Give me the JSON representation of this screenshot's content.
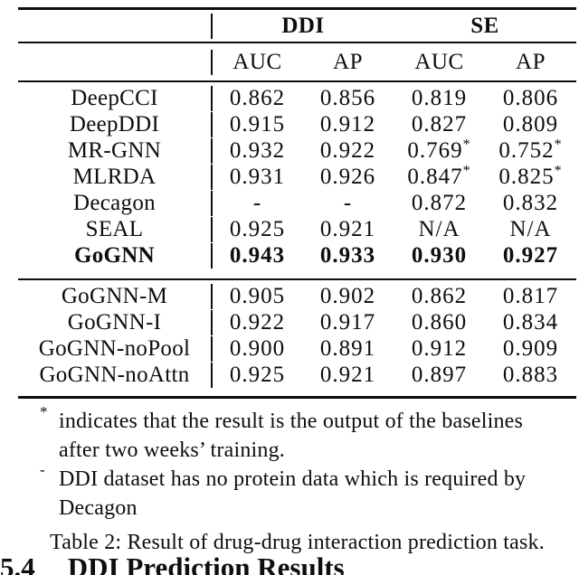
{
  "table": {
    "group_headers": [
      "DDI",
      "SE"
    ],
    "sub_headers": [
      "AUC",
      "AP",
      "AUC",
      "AP"
    ],
    "baseline_rows": [
      {
        "name": "DeepCCI",
        "bold": false,
        "values": [
          "0.862",
          "0.856",
          "0.819",
          "0.806"
        ]
      },
      {
        "name": "DeepDDI",
        "bold": false,
        "values": [
          "0.915",
          "0.912",
          "0.827",
          "0.809"
        ]
      },
      {
        "name": "MR-GNN",
        "bold": false,
        "values": [
          "0.932",
          "0.922",
          "0.769*",
          "0.752*"
        ]
      },
      {
        "name": "MLRDA",
        "bold": false,
        "values": [
          "0.931",
          "0.926",
          "0.847*",
          "0.825*"
        ]
      },
      {
        "name": "Decagon",
        "bold": false,
        "values": [
          "-",
          "-",
          "0.872",
          "0.832"
        ]
      },
      {
        "name": "SEAL",
        "bold": false,
        "values": [
          "0.925",
          "0.921",
          "N/A",
          "N/A"
        ]
      },
      {
        "name": "GoGNN",
        "bold": true,
        "values": [
          "0.943",
          "0.933",
          "0.930",
          "0.927"
        ]
      }
    ],
    "ablation_rows": [
      {
        "name": "GoGNN-M",
        "bold": false,
        "values": [
          "0.905",
          "0.902",
          "0.862",
          "0.817"
        ]
      },
      {
        "name": "GoGNN-I",
        "bold": false,
        "values": [
          "0.922",
          "0.917",
          "0.860",
          "0.834"
        ]
      },
      {
        "name": "GoGNN-noPool",
        "bold": false,
        "values": [
          "0.900",
          "0.891",
          "0.912",
          "0.909"
        ]
      },
      {
        "name": "GoGNN-noAttn",
        "bold": false,
        "values": [
          "0.925",
          "0.921",
          "0.897",
          "0.883"
        ]
      }
    ]
  },
  "footnotes": [
    {
      "marker": "*",
      "lines": [
        "indicates that the result is the output of the baselines",
        "after two weeks’ training."
      ]
    },
    {
      "marker": "-",
      "lines": [
        "DDI dataset has no protein data which is required by",
        "Decagon"
      ]
    }
  ],
  "caption": "Table 2: Result of drug-drug interaction prediction task.",
  "section_heading": {
    "number": "5.4",
    "title": "DDI Prediction Results"
  },
  "colors": {
    "text": "#0e0e0e",
    "background": "#ffffff"
  }
}
